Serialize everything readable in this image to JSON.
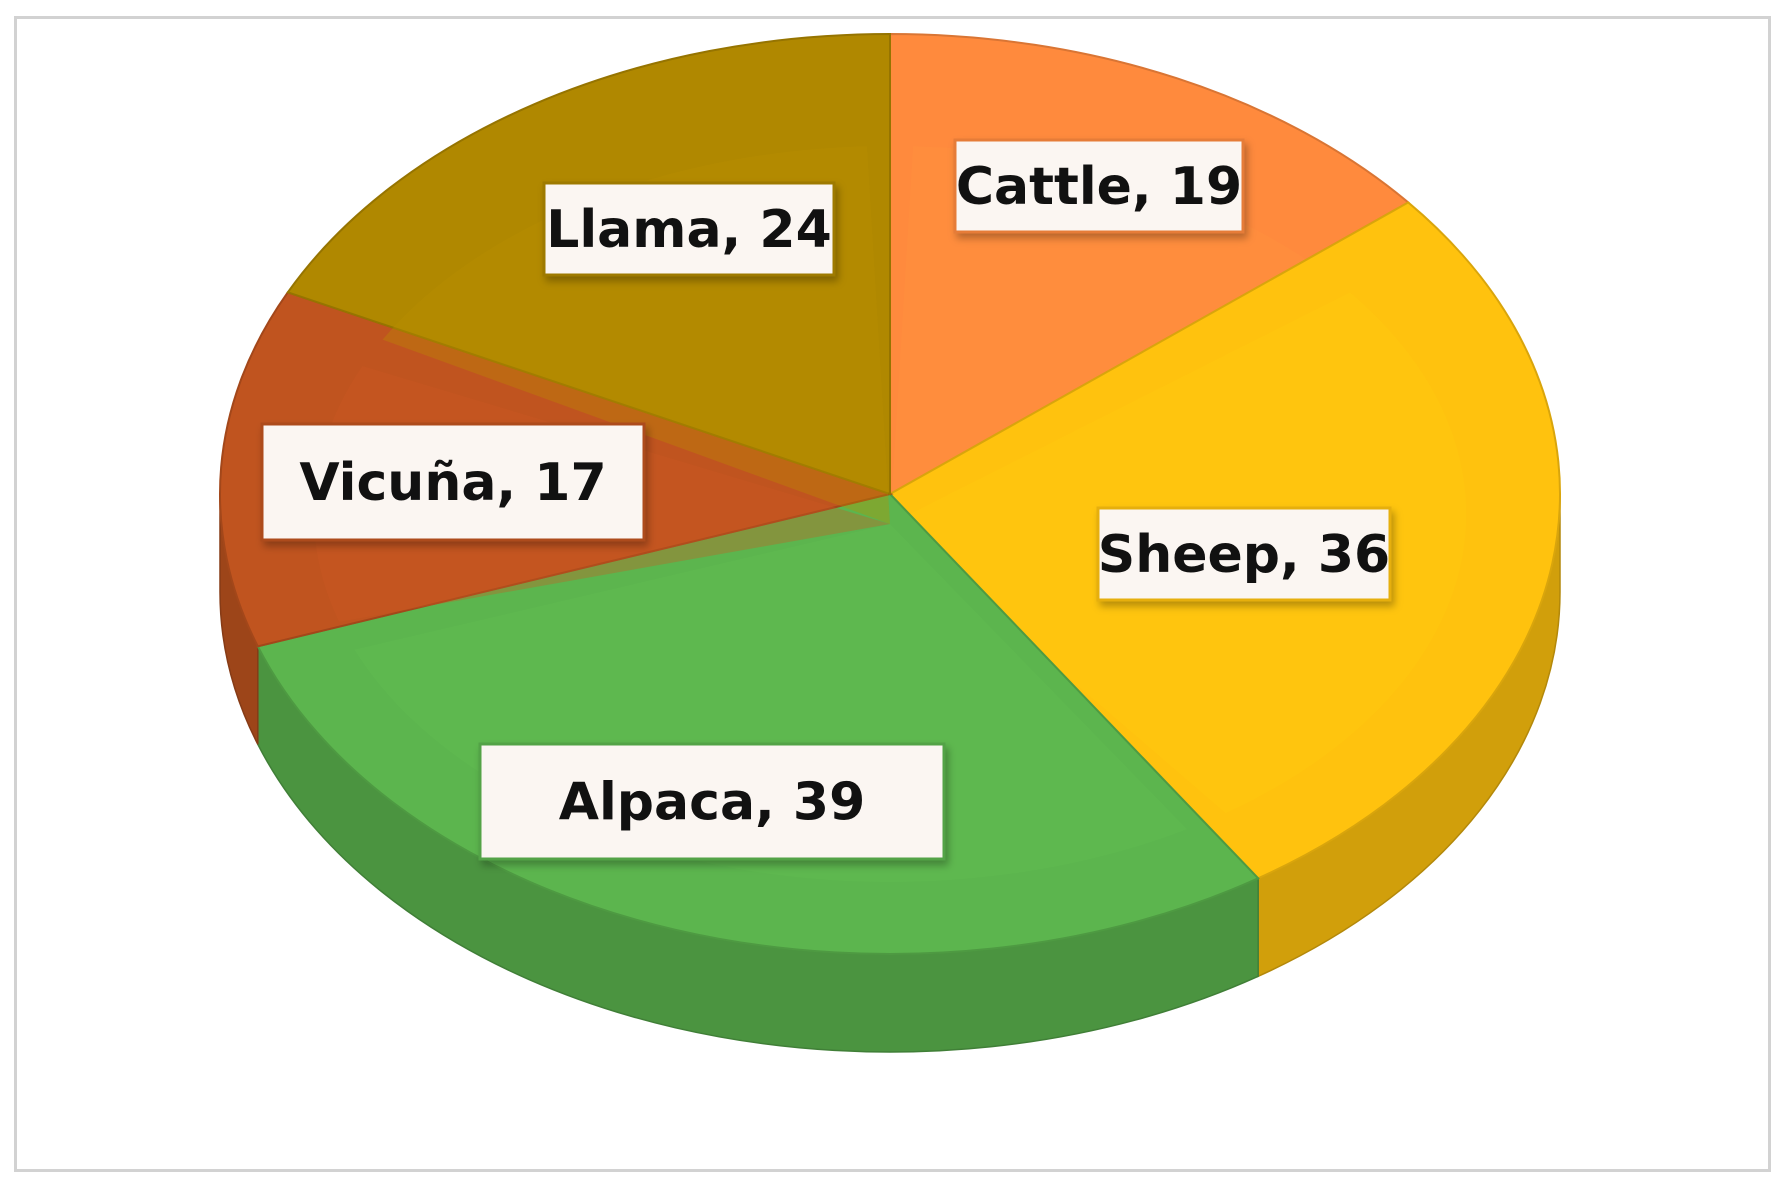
{
  "chart_data": {
    "type": "pie",
    "style": "3d",
    "title": "",
    "legend": "none",
    "slices": [
      {
        "label": "Cattle",
        "value": 19,
        "color": "#ff8a3d",
        "data_label": "Cattle, 19"
      },
      {
        "label": "Sheep",
        "value": 36,
        "color": "#ffc20e",
        "data_label": "Sheep, 36"
      },
      {
        "label": "Alpaca",
        "value": 39,
        "color": "#5cb54e",
        "data_label": "Alpaca, 39"
      },
      {
        "label": "Vicuña",
        "value": 17,
        "color": "#c0541f",
        "data_label": "Vicuña, 17"
      },
      {
        "label": "Llama",
        "value": 24,
        "color": "#b08800",
        "data_label": "Llama, 24"
      }
    ]
  }
}
